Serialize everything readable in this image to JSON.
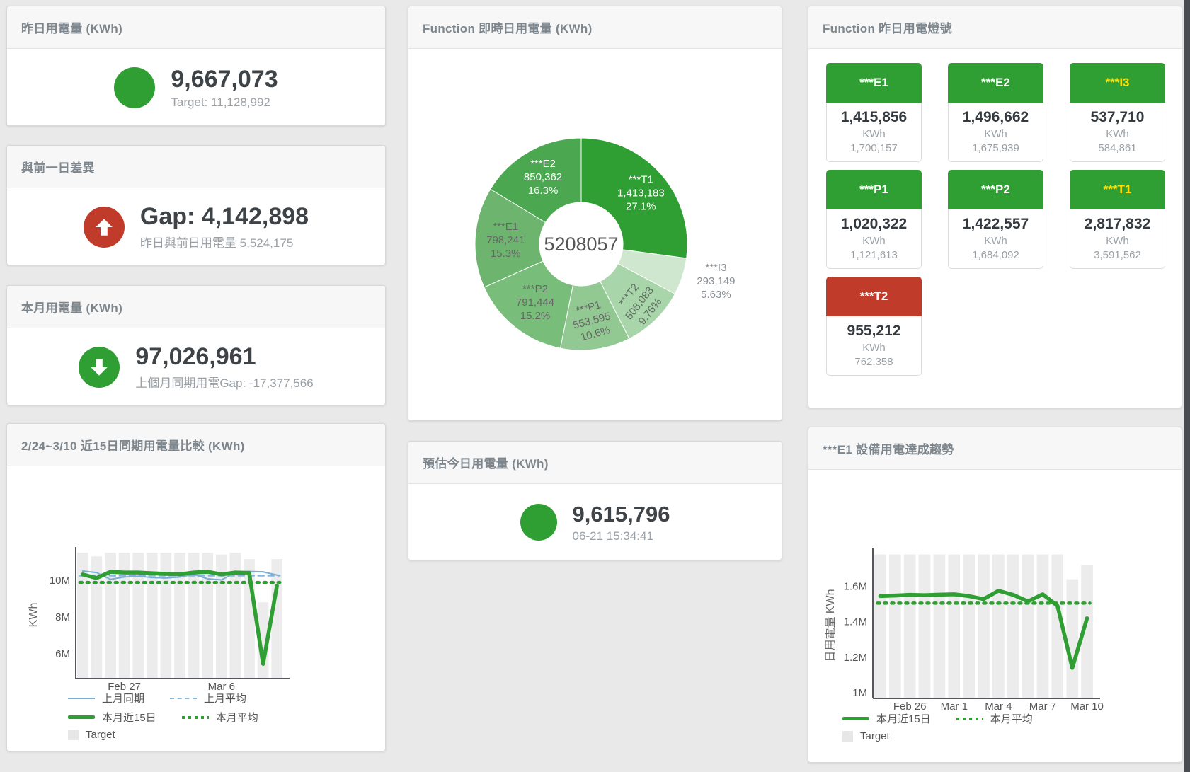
{
  "colors": {
    "green": "#2f9e33",
    "red": "#c13b2a",
    "yellow": "#ffe000",
    "blue": "#79aed6",
    "blueLight": "#85b7dd",
    "target": "#ececec",
    "slices": [
      "#2f9e33",
      "#cfe7cf",
      "#a9d5aa",
      "#92c993",
      "#79bd7b",
      "#6db56f",
      "#4ba750"
    ]
  },
  "cards": {
    "yesterday": {
      "title": "昨日用電量 (KWh)",
      "value": "9,667,073",
      "subtitle": "Target: 11,128,992"
    },
    "diff": {
      "title": "與前一日差異",
      "value": "Gap: 4,142,898",
      "subtitle": "昨日與前日用電量 5,524,175"
    },
    "month": {
      "title": "本月用電量 (KWh)",
      "value": "97,026,961",
      "subtitle": "上個月同期用電Gap: -17,377,566"
    },
    "estimate": {
      "title": "預估今日用電量 (KWh)",
      "value": "9,615,796",
      "subtitle": "06-21 15:34:41"
    },
    "realtime": {
      "title": "Function 即時日用電量 (KWh)"
    },
    "lights": {
      "title": "Function 昨日用電燈號",
      "tiles": [
        {
          "label": "***E1",
          "value": "1,415,856",
          "unit": "KWh",
          "sub": "1,700,157",
          "header": "green",
          "text": "white"
        },
        {
          "label": "***E2",
          "value": "1,496,662",
          "unit": "KWh",
          "sub": "1,675,939",
          "header": "green",
          "text": "white"
        },
        {
          "label": "***I3",
          "value": "537,710",
          "unit": "KWh",
          "sub": "584,861",
          "header": "green",
          "text": "yellow"
        },
        {
          "label": "***P1",
          "value": "1,020,322",
          "unit": "KWh",
          "sub": "1,121,613",
          "header": "green",
          "text": "white"
        },
        {
          "label": "***P2",
          "value": "1,422,557",
          "unit": "KWh",
          "sub": "1,684,092",
          "header": "green",
          "text": "white"
        },
        {
          "label": "***T1",
          "value": "2,817,832",
          "unit": "KWh",
          "sub": "3,591,562",
          "header": "green",
          "text": "yellow"
        },
        {
          "label": "***T2",
          "value": "955,212",
          "unit": "KWh",
          "sub": "762,358",
          "header": "red",
          "text": "white"
        }
      ]
    },
    "compare": {
      "title": "2/24~3/10 近15日同期用電量比較 (KWh)"
    },
    "trend": {
      "title": "***E1 設備用電達成趨勢"
    }
  },
  "chart_data": [
    {
      "type": "pie",
      "title": "Function 即時日用電量 (KWh)",
      "center_total": "5208057",
      "slices": [
        {
          "name": "***T1",
          "value": 1413183,
          "value_label": "1,413,183",
          "pct": "27.1%"
        },
        {
          "name": "***I3",
          "value": 293149,
          "value_label": "293,149",
          "pct": "5.63%"
        },
        {
          "name": "***T2",
          "value": 508083,
          "value_label": "508,083",
          "pct": "9.76%"
        },
        {
          "name": "***P1",
          "value": 553595,
          "value_label": "553,595",
          "pct": "10.6%"
        },
        {
          "name": "***P2",
          "value": 791444,
          "value_label": "791,444",
          "pct": "15.2%"
        },
        {
          "name": "***E1",
          "value": 798241,
          "value_label": "798,241",
          "pct": "15.3%"
        },
        {
          "name": "***E2",
          "value": 850362,
          "value_label": "850,362",
          "pct": "16.3%"
        }
      ]
    },
    {
      "type": "line",
      "title": "2/24~3/10 近15日同期用電量比較 (KWh)",
      "xlabel": "",
      "ylabel": "KWh",
      "ylim": [
        4.65,
        11.58
      ],
      "x_days": 15,
      "yticks": [
        {
          "value": 6,
          "label": "6M"
        },
        {
          "value": 8,
          "label": "8M"
        },
        {
          "value": 10,
          "label": "10M"
        }
      ],
      "xticks": [
        {
          "index": 3,
          "label": "Feb 27"
        },
        {
          "index": 10,
          "label": "Mar 6"
        }
      ],
      "series": [
        {
          "name": "Target",
          "type": "bar",
          "values": [
            11.5,
            11.3,
            11.5,
            11.5,
            11.5,
            11.5,
            11.5,
            11.5,
            11.5,
            11.5,
            11.4,
            11.5,
            11.15,
            8.8,
            11.15
          ]
        },
        {
          "name": "上月同期",
          "type": "line",
          "values": [
            10.5,
            10.42,
            10.05,
            10.18,
            10.22,
            10.15,
            10.12,
            10.18,
            10.32,
            10.08,
            10.02,
            10.42,
            10.48,
            10.46,
            10.28
          ]
        },
        {
          "name": "上月平均",
          "type": "dash",
          "value": 10.25
        },
        {
          "name": "本月平均",
          "type": "dot",
          "value": 9.88
        },
        {
          "name": "本月近15日",
          "type": "thick",
          "values": [
            10.32,
            10.12,
            10.46,
            10.42,
            10.42,
            10.38,
            10.35,
            10.33,
            10.42,
            10.46,
            10.32,
            10.42,
            10.4,
            5.45,
            9.7
          ]
        }
      ],
      "legend": [
        {
          "label": "上月同期",
          "style": "blue-line"
        },
        {
          "label": "上月平均",
          "style": "blue-dash"
        },
        {
          "label": "本月近15日",
          "style": "green-thick"
        },
        {
          "label": "本月平均",
          "style": "green-dot"
        },
        {
          "label": "Target",
          "style": "gray-box"
        }
      ]
    },
    {
      "type": "line",
      "title": "***E1 設備用電達成趨勢",
      "xlabel": "",
      "ylabel": "日用電量 KWh",
      "ylim": [
        0.968,
        1.79
      ],
      "x_days": 15,
      "yticks": [
        {
          "value": 1,
          "label": "1M"
        },
        {
          "value": 1.2,
          "label": "1.2M"
        },
        {
          "value": 1.4,
          "label": "1.4M"
        },
        {
          "value": 1.6,
          "label": "1.6M"
        }
      ],
      "xticks": [
        {
          "index": 2,
          "label": "Feb 26"
        },
        {
          "index": 5,
          "label": "Mar 1"
        },
        {
          "index": 8,
          "label": "Mar 4"
        },
        {
          "index": 11,
          "label": "Mar 7"
        },
        {
          "index": 14,
          "label": "Mar 10"
        }
      ],
      "series": [
        {
          "name": "Target",
          "type": "bar",
          "values": [
            1.78,
            1.78,
            1.78,
            1.78,
            1.78,
            1.78,
            1.78,
            1.78,
            1.78,
            1.78,
            1.78,
            1.78,
            1.78,
            1.64,
            1.72
          ]
        },
        {
          "name": "本月平均",
          "type": "dot",
          "value": 1.505
        },
        {
          "name": "本月近15日",
          "type": "thick",
          "values": [
            1.545,
            1.548,
            1.552,
            1.55,
            1.553,
            1.555,
            1.545,
            1.528,
            1.575,
            1.552,
            1.515,
            1.555,
            1.49,
            1.14,
            1.42
          ]
        }
      ],
      "legend": [
        {
          "label": "本月近15日",
          "style": "green-thick"
        },
        {
          "label": "本月平均",
          "style": "green-dot"
        },
        {
          "label": "Target",
          "style": "gray-box"
        }
      ]
    }
  ]
}
